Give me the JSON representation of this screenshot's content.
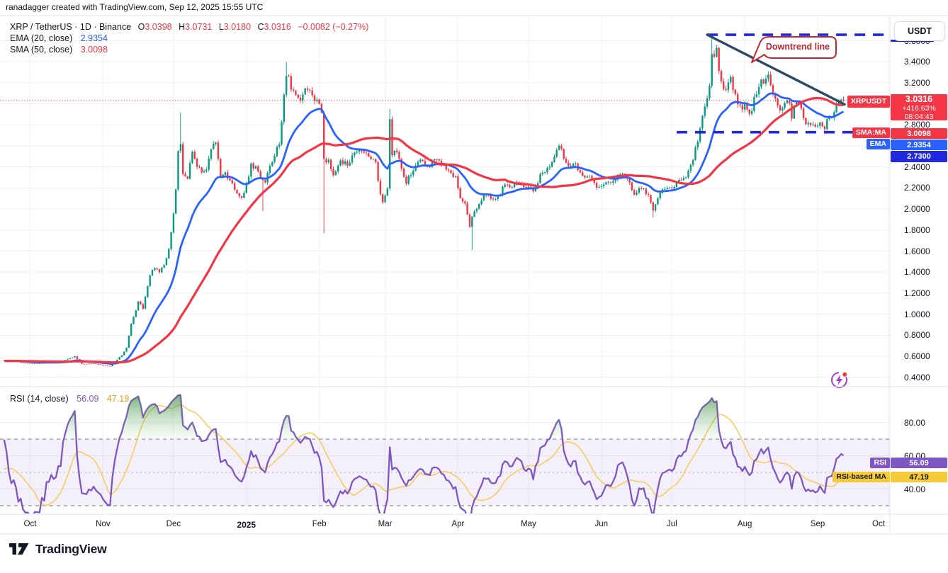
{
  "header": {
    "credit": "ranadagger created with TradingView.com, Sep 12, 2025 15:55 UTC"
  },
  "legend": {
    "symbol": "XRP / TetherUS · 1D · Binance",
    "open_label": "O",
    "open": "3.0398",
    "high_label": "H",
    "high": "3.0731",
    "low_label": "L",
    "low": "3.0180",
    "close_label": "C",
    "close": "3.0316",
    "change": "−0.0082 (−0.27%)",
    "ema_label": "EMA (20, close)",
    "ema_value": "2.9354",
    "sma_label": "SMA (50, close)",
    "sma_value": "3.0098",
    "rsi_label": "RSI (14, close)",
    "rsi_value": "56.09",
    "rsi_ma_value": "47.19"
  },
  "axis": {
    "currency_button": "USDT"
  },
  "badges": {
    "symbol_tag": "XRPUSDT",
    "last_price": "3.0316",
    "change_pct": "+416.63%",
    "countdown": "08:04:43",
    "sma_tag": "SMA:MA",
    "sma_value": "3.0098",
    "ema_tag": "EMA",
    "ema_value": "2.9354",
    "level_value": "2.7300",
    "rsi_tag": "RSI",
    "rsi_value": "56.09",
    "rsi_ma_tag": "RSI-based MA",
    "rsi_ma_value": "47.19"
  },
  "drawings": {
    "callout_text": "Downtrend line"
  },
  "logo": {
    "text": "TradingView"
  },
  "colors": {
    "up": "#089981",
    "down": "#f23645",
    "ema": "#2962ff",
    "sma": "#f23645",
    "rsi": "#7e57c2",
    "rsi_ma": "#f5cd62",
    "dashed_blue": "#2128df",
    "trendline": "#2e4a66",
    "callout": "#c1272f",
    "grid": "#f0f1f4",
    "border": "#e0e3eb",
    "band_fill": "rgba(126,87,194,0.09)",
    "band_line": "#787b86",
    "flash": "#a03fd0"
  },
  "chart_data": {
    "type": "candlestick",
    "symbol": "XRP/USDT",
    "exchange": "Binance",
    "timeframe": "1D",
    "start_date": "2024-09-20",
    "days": 358,
    "y_axis": {
      "min": 0.4,
      "max": 3.7,
      "ticks": [
        {
          "label": "3.6000",
          "value": 3.6
        },
        {
          "label": "3.4000",
          "value": 3.4
        },
        {
          "label": "3.2000",
          "value": 3.2
        },
        {
          "label": "3.0000",
          "value": 3.0
        },
        {
          "label": "2.8000",
          "value": 2.8
        },
        {
          "label": "2.6000",
          "value": 2.6
        },
        {
          "label": "2.4000",
          "value": 2.4
        },
        {
          "label": "2.2000",
          "value": 2.2
        },
        {
          "label": "2.0000",
          "value": 2.0
        },
        {
          "label": "1.8000",
          "value": 1.8
        },
        {
          "label": "1.6000",
          "value": 1.6
        },
        {
          "label": "1.4000",
          "value": 1.4
        },
        {
          "label": "1.2000",
          "value": 1.2
        },
        {
          "label": "1.0000",
          "value": 1.0
        },
        {
          "label": "0.8000",
          "value": 0.8
        },
        {
          "label": "0.6000",
          "value": 0.6
        },
        {
          "label": "0.4000",
          "value": 0.4
        }
      ]
    },
    "x_axis": {
      "months": [
        {
          "label": "Oct",
          "day": 11
        },
        {
          "label": "Nov",
          "day": 42
        },
        {
          "label": "Dec",
          "day": 72
        },
        {
          "label": "2025",
          "day": 103,
          "bold": true
        },
        {
          "label": "Feb",
          "day": 134
        },
        {
          "label": "Mar",
          "day": 162
        },
        {
          "label": "Apr",
          "day": 193
        },
        {
          "label": "May",
          "day": 223
        },
        {
          "label": "Jun",
          "day": 254
        },
        {
          "label": "Jul",
          "day": 284
        },
        {
          "label": "Aug",
          "day": 315
        },
        {
          "label": "Sep",
          "day": 346
        },
        {
          "label": "Oct",
          "day": 376
        }
      ]
    },
    "close_anchors": [
      [
        0,
        0.565
      ],
      [
        6,
        0.545
      ],
      [
        11,
        0.53
      ],
      [
        16,
        0.535
      ],
      [
        24,
        0.545
      ],
      [
        30,
        0.6
      ],
      [
        33,
        0.525
      ],
      [
        38,
        0.53
      ],
      [
        42,
        0.515
      ],
      [
        45,
        0.505
      ],
      [
        47,
        0.55
      ],
      [
        50,
        0.61
      ],
      [
        52,
        0.68
      ],
      [
        54,
        0.9
      ],
      [
        57,
        1.12
      ],
      [
        59,
        1.05
      ],
      [
        62,
        1.38
      ],
      [
        64,
        1.45
      ],
      [
        66,
        1.4
      ],
      [
        68,
        1.47
      ],
      [
        70,
        1.62
      ],
      [
        72,
        1.94
      ],
      [
        73,
        2.2
      ],
      [
        74,
        2.56
      ],
      [
        75,
        2.62
      ],
      [
        76,
        2.32
      ],
      [
        78,
        2.26
      ],
      [
        80,
        2.56
      ],
      [
        82,
        2.42
      ],
      [
        84,
        2.35
      ],
      [
        86,
        2.4
      ],
      [
        88,
        2.56
      ],
      [
        90,
        2.66
      ],
      [
        92,
        2.3
      ],
      [
        94,
        2.34
      ],
      [
        96,
        2.26
      ],
      [
        98,
        2.2
      ],
      [
        101,
        2.12
      ],
      [
        103,
        2.22
      ],
      [
        105,
        2.44
      ],
      [
        107,
        2.38
      ],
      [
        109,
        2.28
      ],
      [
        111,
        2.24
      ],
      [
        113,
        2.42
      ],
      [
        115,
        2.52
      ],
      [
        117,
        2.62
      ],
      [
        119,
        3.1
      ],
      [
        120,
        3.29
      ],
      [
        122,
        3.16
      ],
      [
        124,
        3.12
      ],
      [
        126,
        3.02
      ],
      [
        128,
        3.18
      ],
      [
        130,
        3.1
      ],
      [
        132,
        3.05
      ],
      [
        134,
        2.98
      ],
      [
        135,
        2.9
      ],
      [
        136,
        2.48
      ],
      [
        138,
        2.44
      ],
      [
        140,
        2.33
      ],
      [
        143,
        2.46
      ],
      [
        146,
        2.42
      ],
      [
        149,
        2.54
      ],
      [
        152,
        2.56
      ],
      [
        155,
        2.5
      ],
      [
        158,
        2.42
      ],
      [
        160,
        2.16
      ],
      [
        161,
        2.06
      ],
      [
        163,
        2.18
      ],
      [
        164,
        2.88
      ],
      [
        165,
        2.52
      ],
      [
        167,
        2.56
      ],
      [
        169,
        2.38
      ],
      [
        171,
        2.26
      ],
      [
        174,
        2.36
      ],
      [
        177,
        2.46
      ],
      [
        180,
        2.4
      ],
      [
        183,
        2.47
      ],
      [
        186,
        2.43
      ],
      [
        189,
        2.36
      ],
      [
        192,
        2.31
      ],
      [
        194,
        2.12
      ],
      [
        196,
        2.04
      ],
      [
        198,
        1.82
      ],
      [
        199,
        1.94
      ],
      [
        201,
        2.01
      ],
      [
        204,
        2.15
      ],
      [
        207,
        2.09
      ],
      [
        210,
        2.12
      ],
      [
        213,
        2.23
      ],
      [
        216,
        2.2
      ],
      [
        219,
        2.26
      ],
      [
        222,
        2.21
      ],
      [
        225,
        2.19
      ],
      [
        228,
        2.31
      ],
      [
        231,
        2.38
      ],
      [
        234,
        2.52
      ],
      [
        236,
        2.61
      ],
      [
        238,
        2.47
      ],
      [
        240,
        2.39
      ],
      [
        243,
        2.42
      ],
      [
        246,
        2.32
      ],
      [
        249,
        2.29
      ],
      [
        253,
        2.19
      ],
      [
        256,
        2.23
      ],
      [
        259,
        2.29
      ],
      [
        262,
        2.33
      ],
      [
        265,
        2.28
      ],
      [
        268,
        2.16
      ],
      [
        271,
        2.21
      ],
      [
        274,
        2.13
      ],
      [
        276,
        1.98
      ],
      [
        278,
        2.11
      ],
      [
        281,
        2.19
      ],
      [
        284,
        2.18
      ],
      [
        287,
        2.26
      ],
      [
        290,
        2.29
      ],
      [
        292,
        2.41
      ],
      [
        294,
        2.57
      ],
      [
        296,
        2.76
      ],
      [
        298,
        2.96
      ],
      [
        300,
        3.19
      ],
      [
        301,
        3.46
      ],
      [
        303,
        3.49
      ],
      [
        305,
        3.19
      ],
      [
        307,
        3.13
      ],
      [
        309,
        3.26
      ],
      [
        311,
        3.06
      ],
      [
        313,
        2.97
      ],
      [
        315,
        2.99
      ],
      [
        317,
        2.89
      ],
      [
        319,
        3.03
      ],
      [
        321,
        3.16
      ],
      [
        323,
        3.23
      ],
      [
        325,
        3.29
      ],
      [
        327,
        3.13
      ],
      [
        329,
        2.99
      ],
      [
        331,
        2.93
      ],
      [
        333,
        3.06
      ],
      [
        335,
        2.89
      ],
      [
        337,
        3.03
      ],
      [
        339,
        2.93
      ],
      [
        341,
        2.81
      ],
      [
        343,
        2.83
      ],
      [
        345,
        2.79
      ],
      [
        347,
        2.83
      ],
      [
        349,
        2.79
      ],
      [
        351,
        2.86
      ],
      [
        353,
        2.93
      ],
      [
        355,
        3.01
      ],
      [
        357,
        3.0316
      ]
    ],
    "wick_events": [
      {
        "day": 75,
        "high": 2.92
      },
      {
        "day": 110,
        "low": 1.98
      },
      {
        "day": 120,
        "high": 3.4
      },
      {
        "day": 136,
        "low": 1.77
      },
      {
        "day": 164,
        "high": 2.95
      },
      {
        "day": 199,
        "low": 1.61
      },
      {
        "day": 276,
        "low": 1.92
      },
      {
        "day": 301,
        "high": 3.66
      }
    ],
    "last_candle": {
      "open": 3.0398,
      "high": 3.0731,
      "low": 3.018,
      "close": 3.0316
    },
    "overlays": {
      "ema_period": 20,
      "ema_current": 2.9354,
      "sma_period": 50,
      "sma_current": 3.0098
    },
    "drawings": {
      "resistance": {
        "from_day": 299,
        "price": 3.657
      },
      "support": {
        "from_day": 286,
        "price": 2.73
      },
      "trendline": {
        "from_day": 299,
        "from_price": 3.657,
        "to_day": 357.5,
        "to_price": 2.995
      },
      "callout": "Downtrend line"
    },
    "rsi": {
      "period": 14,
      "current": 56.09,
      "ma_current": 47.19,
      "upper_band": 70,
      "lower_band": 30,
      "ticks": [
        {
          "label": "80.00",
          "value": 80
        },
        {
          "label": "60.00",
          "value": 60
        },
        {
          "label": "40.00",
          "value": 40
        }
      ]
    }
  }
}
